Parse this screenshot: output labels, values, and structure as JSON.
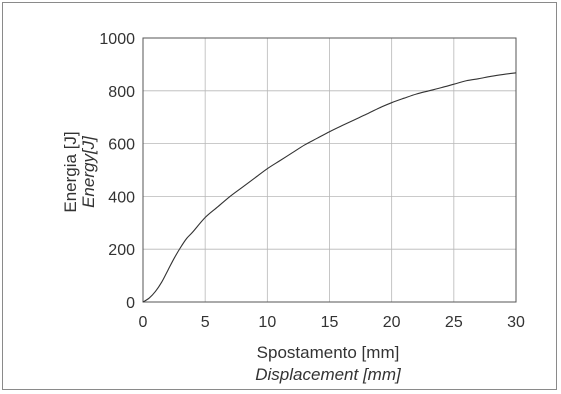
{
  "chart_data": {
    "type": "line",
    "xlabel": "Spostamento [mm]",
    "xlabel_en": "Displacement [mm]",
    "ylabel": "Energia [J]",
    "ylabel_en": "Energy[J]",
    "xlim": [
      0,
      30
    ],
    "ylim": [
      0,
      1000
    ],
    "x_ticks": [
      0,
      5,
      10,
      15,
      20,
      25,
      30
    ],
    "y_ticks": [
      0,
      200,
      400,
      600,
      800,
      1000
    ],
    "grid": true,
    "series": [
      {
        "x": [
          0,
          0.5,
          1,
          1.5,
          2,
          2.5,
          3,
          3.5,
          4,
          5,
          6,
          7,
          8,
          9,
          10,
          11,
          12,
          13,
          14,
          15,
          16,
          17,
          18,
          19,
          20,
          21,
          22,
          23,
          24,
          25,
          26,
          27,
          28,
          29,
          30
        ],
        "y": [
          0,
          15,
          40,
          75,
          120,
          165,
          205,
          240,
          265,
          320,
          360,
          400,
          435,
          470,
          505,
          535,
          565,
          595,
          620,
          645,
          668,
          690,
          712,
          735,
          755,
          772,
          788,
          800,
          812,
          825,
          838,
          846,
          855,
          862,
          868
        ]
      }
    ]
  }
}
